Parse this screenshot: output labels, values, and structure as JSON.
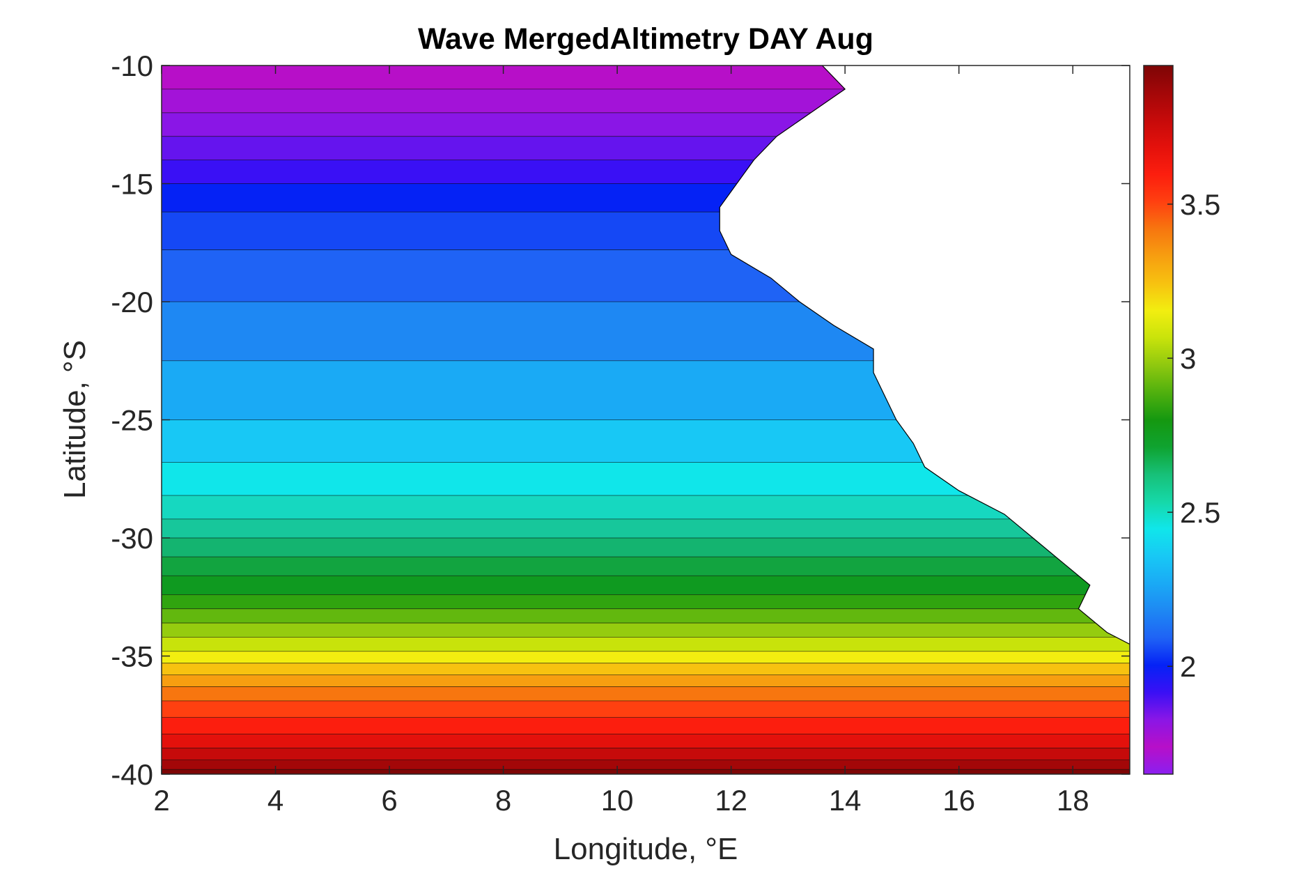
{
  "chart_data": {
    "type": "heatmap",
    "subtype": "filled-contour-map",
    "title": "Wave MergedAltimetry DAY Aug",
    "xlabel": "Longitude, °E",
    "ylabel": "Latitude, °S",
    "xlim": [
      2,
      19
    ],
    "ylim": [
      -40,
      -10
    ],
    "xticks": [
      2,
      4,
      6,
      8,
      10,
      12,
      14,
      16,
      18
    ],
    "yticks": [
      -10,
      -15,
      -20,
      -25,
      -30,
      -35,
      -40
    ],
    "colorbar": {
      "range": [
        1.65,
        3.95
      ],
      "ticks": [
        2,
        2.5,
        3,
        3.5
      ],
      "colors": [
        "#8B1FF0",
        "#B70FC8",
        "#8A16E6",
        "#3A10F5",
        "#0522F5",
        "#1F63F5",
        "#1E88F3",
        "#1AAAF5",
        "#18C8F5",
        "#10E6EA",
        "#16D8A8",
        "#17C078",
        "#0FA330",
        "#159810",
        "#50B00E",
        "#8FC80F",
        "#C8E30B",
        "#F2EE10",
        "#F7C210",
        "#F79E10",
        "#F7760F",
        "#FF4010",
        "#FC1E0E",
        "#E4110C",
        "#C60A0A",
        "#A30708",
        "#7E0606"
      ]
    },
    "coastline_west_to_east_boundary": [
      {
        "lat": -10,
        "lon": 13.6
      },
      {
        "lat": -11,
        "lon": 14.0
      },
      {
        "lat": -12,
        "lon": 13.4
      },
      {
        "lat": -13,
        "lon": 12.8
      },
      {
        "lat": -14,
        "lon": 12.4
      },
      {
        "lat": -15,
        "lon": 12.1
      },
      {
        "lat": -16,
        "lon": 11.8
      },
      {
        "lat": -17,
        "lon": 11.8
      },
      {
        "lat": -18,
        "lon": 12.0
      },
      {
        "lat": -19,
        "lon": 12.7
      },
      {
        "lat": -20,
        "lon": 13.2
      },
      {
        "lat": -21,
        "lon": 13.8
      },
      {
        "lat": -22,
        "lon": 14.5
      },
      {
        "lat": -23,
        "lon": 14.5
      },
      {
        "lat": -24,
        "lon": 14.7
      },
      {
        "lat": -25,
        "lon": 14.9
      },
      {
        "lat": -26,
        "lon": 15.2
      },
      {
        "lat": -27,
        "lon": 15.4
      },
      {
        "lat": -28,
        "lon": 16.0
      },
      {
        "lat": -29,
        "lon": 16.8
      },
      {
        "lat": -30,
        "lon": 17.3
      },
      {
        "lat": -31,
        "lon": 17.8
      },
      {
        "lat": -32,
        "lon": 18.3
      },
      {
        "lat": -33,
        "lon": 18.1
      },
      {
        "lat": -34,
        "lon": 18.6
      },
      {
        "lat": -34.5,
        "lon": 19.0
      }
    ],
    "latitude_bands": [
      {
        "lat_top": -10.0,
        "color": "#B70FC8"
      },
      {
        "lat_top": -11.0,
        "color": "#A313D8"
      },
      {
        "lat_top": -12.0,
        "color": "#8A16E6"
      },
      {
        "lat_top": -13.0,
        "color": "#6514EE"
      },
      {
        "lat_top": -14.0,
        "color": "#3A10F5"
      },
      {
        "lat_top": -15.0,
        "color": "#0522F5"
      },
      {
        "lat_top": -16.2,
        "color": "#1548F5"
      },
      {
        "lat_top": -17.8,
        "color": "#1F63F5"
      },
      {
        "lat_top": -20.0,
        "color": "#1E88F3"
      },
      {
        "lat_top": -22.5,
        "color": "#1AAAF5"
      },
      {
        "lat_top": -25.0,
        "color": "#18C8F5"
      },
      {
        "lat_top": -26.8,
        "color": "#10E6EA"
      },
      {
        "lat_top": -28.2,
        "color": "#16D8C0"
      },
      {
        "lat_top": -29.2,
        "color": "#17C79B"
      },
      {
        "lat_top": -30.0,
        "color": "#14B470"
      },
      {
        "lat_top": -30.8,
        "color": "#12A440"
      },
      {
        "lat_top": -31.6,
        "color": "#0F9A20"
      },
      {
        "lat_top": -32.4,
        "color": "#30A40F"
      },
      {
        "lat_top": -33.0,
        "color": "#62B80E"
      },
      {
        "lat_top": -33.6,
        "color": "#95CC0F"
      },
      {
        "lat_top": -34.2,
        "color": "#C8E30B"
      },
      {
        "lat_top": -34.8,
        "color": "#F2EE10"
      },
      {
        "lat_top": -35.3,
        "color": "#F7C210"
      },
      {
        "lat_top": -35.8,
        "color": "#F79E10"
      },
      {
        "lat_top": -36.3,
        "color": "#F7760F"
      },
      {
        "lat_top": -36.9,
        "color": "#FF4010"
      },
      {
        "lat_top": -37.6,
        "color": "#FC1E0E"
      },
      {
        "lat_top": -38.3,
        "color": "#E4110C"
      },
      {
        "lat_top": -38.9,
        "color": "#C60A0A"
      },
      {
        "lat_top": -39.4,
        "color": "#A30708"
      },
      {
        "lat_top": -39.8,
        "color": "#7E0606"
      }
    ]
  }
}
